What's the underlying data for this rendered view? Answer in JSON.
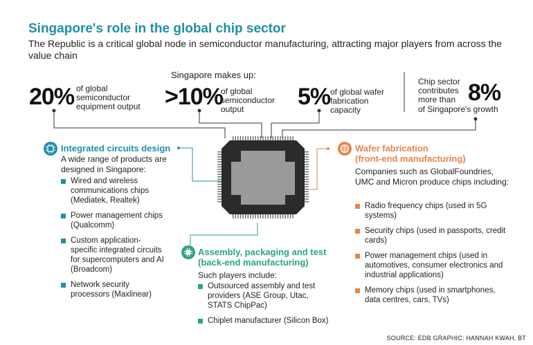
{
  "title": "Singapore's role in the global chip sector",
  "subtitle": "The Republic is a critical global node in semiconductor manufacturing, attracting major players from across the value chain",
  "makes_up_label": "Singapore makes up:",
  "stats": [
    {
      "value": "20%",
      "text": "of global semiconductor equipment output"
    },
    {
      "value": ">10%",
      "text": "of global semiconductor output"
    },
    {
      "value": "5%",
      "text": "of global wafer fabrication capacity"
    },
    {
      "value": "8%",
      "text_before": "Chip sector contributes more than",
      "text_after": "of Singapore's growth"
    }
  ],
  "ic_design": {
    "title": "Integrated circuits design",
    "intro": "A wide range of products are designed in Singapore:",
    "items": [
      "Wired and wireless communications chips (Mediatek, Realtek)",
      "Power management chips (Qualcomm)",
      "Custom application-specific integrated circuits for supercomputers and AI (Broadcom)",
      "Network security processors (Maxlinear)"
    ]
  },
  "assembly": {
    "title": "Assembly, packaging and test",
    "subtitle": "(back-end manufacturing)",
    "intro": "Such players include:",
    "items": [
      "Outsourced assembly and test providers (ASE Group, Utac, STATS ChipPac)",
      "Chiplet manufacturer (Silicon Box)"
    ]
  },
  "wafer": {
    "title": "Wafer fabrication",
    "subtitle": "(front-end manufacturing)",
    "intro": "Companies such as GlobalFoundries, UMC and Micron produce chips including:",
    "items": [
      "Radio frequency chips (used in 5G systems)",
      "Security chips (used in passports, credit cards)",
      "Power management chips (used in automotives, consumer electronics and industrial applications)",
      "Memory chips (used in smartphones, data centres, cars, TVs)"
    ]
  },
  "source": "SOURCE: EDB  GRAPHIC: HANNAH KWAH, BT",
  "colors": {
    "teal": "#1f8fa8",
    "green": "#2aa676",
    "orange": "#e8844a",
    "chip_dark": "#2b2b2b",
    "chip_light": "#9a9a9a"
  },
  "icons": [
    "circuit-icon",
    "chip-icon",
    "wafer-icon"
  ]
}
